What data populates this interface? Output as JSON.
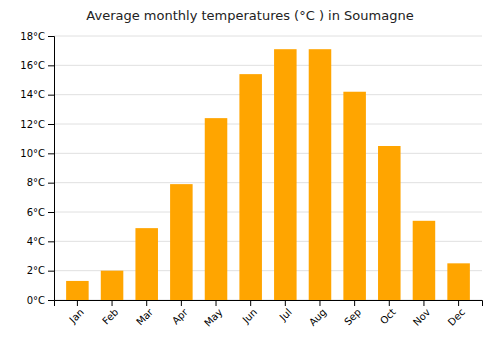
{
  "chart_data": {
    "type": "bar",
    "title": "Average monthly temperatures (°C ) in Soumagne",
    "categories": [
      "Jan",
      "Feb",
      "Mar",
      "Apr",
      "May",
      "Jun",
      "Jul",
      "Aug",
      "Sep",
      "Oct",
      "Nov",
      "Dec"
    ],
    "values": [
      1.3,
      2.0,
      4.9,
      7.9,
      12.4,
      15.4,
      17.1,
      17.1,
      14.2,
      10.5,
      5.4,
      2.5
    ],
    "color": "#FFA500",
    "ylim": [
      0,
      18
    ],
    "yticks": [
      {
        "value": 0,
        "label": "0°C"
      },
      {
        "value": 2,
        "label": "2°C"
      },
      {
        "value": 4,
        "label": "4°C"
      },
      {
        "value": 6,
        "label": "6°C"
      },
      {
        "value": 8,
        "label": "8°C"
      },
      {
        "value": 10,
        "label": "10°C"
      },
      {
        "value": 12,
        "label": "12°C"
      },
      {
        "value": 14,
        "label": "14°C"
      },
      {
        "value": 16,
        "label": "16°C"
      },
      {
        "value": 18,
        "label": "18°C"
      }
    ],
    "grid": true
  }
}
